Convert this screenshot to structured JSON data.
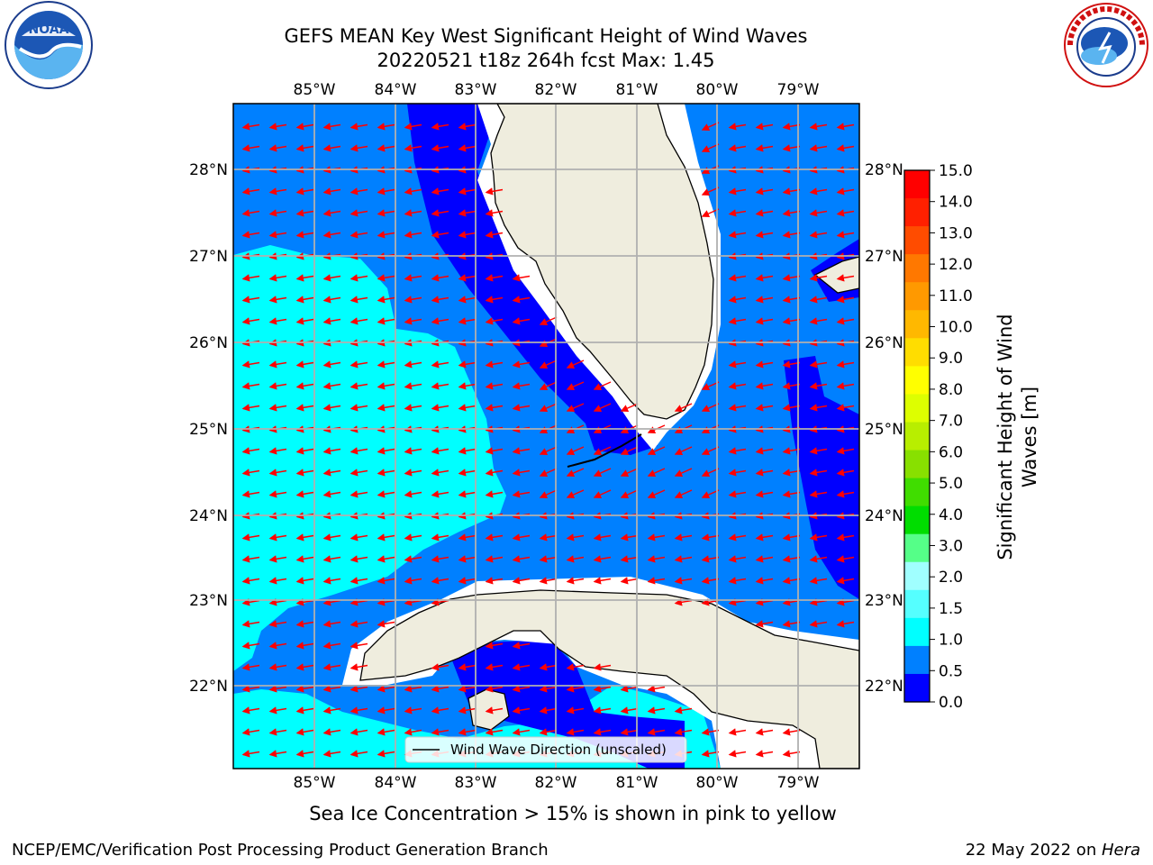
{
  "title": {
    "line1": "GEFS MEAN Key West Significant Height of Wind Waves",
    "line2": "20220521 t18z 264h fcst   Max: 1.45"
  },
  "map": {
    "lon_labels": [
      "85°W",
      "84°W",
      "83°W",
      "82°W",
      "81°W",
      "80°W",
      "79°W"
    ],
    "lat_labels": [
      "28°N",
      "27°N",
      "26°N",
      "25°N",
      "24°N",
      "23°N",
      "22°N"
    ],
    "legend_label": "Wind Wave Direction (unscaled)",
    "colors": {
      "land": "#efedde",
      "cyan": "#00ffff",
      "mid_blue": "#0080ff",
      "blue": "#0000ff",
      "grid": "#b0b0b0",
      "arrow": "#ff0000"
    }
  },
  "colorbar": {
    "label_line1": "Significant Height of Wind",
    "label_line2": "Waves [m]",
    "ticks": [
      "15.0",
      "14.0",
      "13.0",
      "12.0",
      "11.0",
      "10.0",
      "9.0",
      "8.0",
      "7.0",
      "6.0",
      "5.0",
      "4.0",
      "3.0",
      "2.0",
      "1.5",
      "1.0",
      "0.5",
      "0.0"
    ],
    "colors": [
      "#ff0000",
      "#ff2000",
      "#ff4c00",
      "#ff7800",
      "#ff9900",
      "#ffb800",
      "#ffdd00",
      "#ffff00",
      "#ddff00",
      "#b8ee00",
      "#88e000",
      "#40dd00",
      "#00dd00",
      "#55ff88",
      "#a0ffff",
      "#55ffff",
      "#00ffff",
      "#0080ff",
      "#0000ff"
    ]
  },
  "footer": {
    "sea_ice_note": "Sea Ice Concentration > 15% is shown in pink to yellow",
    "credit": "NCEP/EMC/Verification Post Processing Product Generation Branch",
    "date_text": "22 May 2022 on ",
    "machine": "Hera"
  },
  "logos": {
    "noaa_text": "NOAA",
    "nws_text": "NATIONAL WEATHER SERVICE"
  }
}
